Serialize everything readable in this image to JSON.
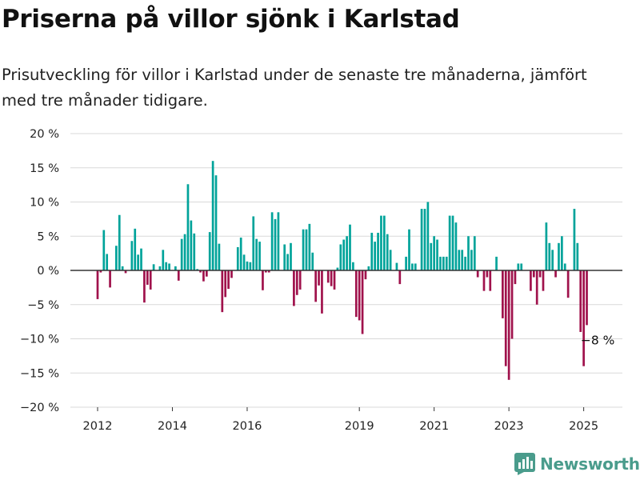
{
  "title": "Priserna på villor sjönk i Karlstad",
  "subtitle": "Prisutveckling för villor i Karlstad under de senaste tre månaderna, jämfört med tre månader tidigare.",
  "logo_text": "Newsworthy",
  "colors": {
    "positive": "#00a39a",
    "negative": "#a0124c",
    "grid": "#d9d9d9",
    "zero": "#333333",
    "logo": "#4a9c8c"
  },
  "chart_data": {
    "type": "bar",
    "title": "Priserna på villor sjönk i Karlstad",
    "ylabel": "",
    "xlabel": "",
    "ylim": [
      -20,
      20
    ],
    "yticks": [
      20,
      15,
      10,
      5,
      0,
      -5,
      -10,
      -15,
      -20
    ],
    "ytick_labels": [
      "20 %",
      "15 %",
      "10 %",
      "5 %",
      "0 %",
      "−5 %",
      "−10 %",
      "−15 %",
      "−20 %"
    ],
    "xticks": [
      "2012",
      "2014",
      "2016",
      "2019",
      "2021",
      "2023",
      "2025"
    ],
    "x_start": "2012-01",
    "frequency": "monthly",
    "grid": true,
    "annotation": {
      "text": "−8 %",
      "month": "2025-06",
      "value": -8
    },
    "values": [
      -4.2,
      -0.3,
      5.9,
      2.4,
      -2.5,
      0.0,
      3.6,
      8.1,
      0.6,
      -0.4,
      0.0,
      4.3,
      6.1,
      2.3,
      3.2,
      -4.7,
      -2.1,
      -2.8,
      0.9,
      0.0,
      0.6,
      3.0,
      1.2,
      1.0,
      0.0,
      0.6,
      -1.5,
      4.6,
      5.3,
      12.6,
      7.3,
      5.4,
      0.2,
      -0.3,
      -1.6,
      -0.9,
      5.6,
      16.0,
      13.9,
      3.9,
      -6.1,
      -3.9,
      -2.7,
      -1.1,
      0.0,
      3.4,
      4.8,
      2.3,
      1.3,
      1.2,
      7.9,
      4.6,
      4.2,
      -2.9,
      -0.3,
      -0.3,
      8.5,
      7.5,
      8.5,
      0.0,
      3.8,
      2.4,
      4.0,
      -5.2,
      -3.6,
      -2.8,
      6.0,
      6.0,
      6.8,
      2.6,
      -4.6,
      -2.2,
      -6.3,
      0.0,
      -1.8,
      -2.3,
      -2.8,
      0.4,
      3.8,
      4.5,
      5.0,
      6.7,
      1.2,
      -6.8,
      -7.3,
      -9.3,
      -1.3,
      0.6,
      5.5,
      4.2,
      5.5,
      8.0,
      8.0,
      5.3,
      3.0,
      0.0,
      1.1,
      -2.0,
      0.0,
      2.0,
      6.0,
      1.0,
      1.0,
      0.0,
      9.0,
      9.0,
      10.0,
      4.0,
      5.0,
      4.5,
      2.0,
      2.0,
      2.0,
      8.0,
      8.0,
      7.0,
      3.0,
      3.0,
      2.0,
      5.0,
      3.0,
      5.0,
      -1.0,
      0.0,
      -3.0,
      -1.0,
      -3.0,
      0.0,
      2.0,
      0.0,
      -7.0,
      -14.0,
      -16.0,
      -10.0,
      -2.0,
      1.0,
      1.0,
      0.0,
      0.0,
      -3.0,
      -1.0,
      -5.0,
      -1.0,
      -3.0,
      7.0,
      4.0,
      3.0,
      -1.0,
      4.0,
      5.0,
      1.0,
      -4.0,
      0.0,
      9.0,
      4.0,
      -9.0,
      -14.0,
      -8.0
    ]
  }
}
